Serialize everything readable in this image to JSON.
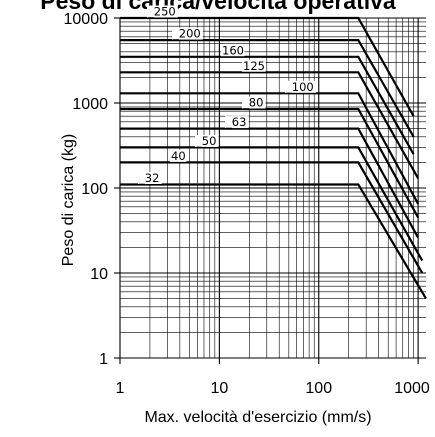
{
  "chart_data": {
    "type": "line",
    "title": "Peso di carica/velocità operativa",
    "xlabel": "Max. velocità d'esercizio (mm/s)",
    "ylabel": "Peso di carica (kg)",
    "xscale": "log",
    "yscale": "log",
    "xlim": [
      1,
      1200
    ],
    "ylim": [
      1,
      10000
    ],
    "grid": true,
    "x_ticks": [
      "1",
      "10",
      "100",
      "1000"
    ],
    "y_ticks": [
      "10000",
      "1000",
      "100",
      "10",
      "1"
    ],
    "series": [
      {
        "name": "250",
        "label": "_250",
        "x": [
          1,
          250,
          900
        ],
        "y": [
          10000,
          10000,
          700
        ]
      },
      {
        "name": "200",
        "label": "_200",
        "x": [
          1,
          250,
          900
        ],
        "y": [
          5500,
          5500,
          400
        ]
      },
      {
        "name": "160",
        "label": "160",
        "x": [
          1,
          250,
          900
        ],
        "y": [
          3500,
          3500,
          250
        ]
      },
      {
        "name": "125",
        "label": "125",
        "x": [
          1,
          250,
          1000
        ],
        "y": [
          2300,
          2300,
          130
        ]
      },
      {
        "name": "100",
        "label": "_100",
        "x": [
          1,
          250,
          1000
        ],
        "y": [
          1300,
          1300,
          65
        ]
      },
      {
        "name": "80",
        "label": "_80",
        "x": [
          1,
          250,
          1000
        ],
        "y": [
          850,
          850,
          45
        ]
      },
      {
        "name": "63",
        "label": "_63",
        "x": [
          1,
          250,
          1000
        ],
        "y": [
          500,
          500,
          26
        ]
      },
      {
        "name": "50",
        "label": "_50",
        "x": [
          1,
          250,
          1100
        ],
        "y": [
          300,
          300,
          14
        ]
      },
      {
        "name": "40",
        "label": "40",
        "x": [
          1,
          250,
          1100
        ],
        "y": [
          200,
          200,
          10
        ]
      },
      {
        "name": "32",
        "label": "_32",
        "x": [
          1,
          250,
          1200
        ],
        "y": [
          110,
          110,
          5
        ]
      }
    ]
  }
}
